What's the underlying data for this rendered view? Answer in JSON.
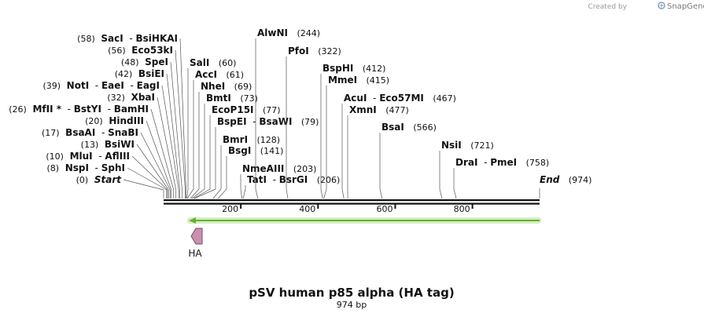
{
  "header": {
    "created_by": "Created by",
    "brand": "SnapGene"
  },
  "map": {
    "title": "pSV human p85 alpha (HA tag)",
    "length_label": "974 bp",
    "length": 974,
    "ticks": [
      200,
      400,
      600,
      800
    ],
    "feature": {
      "name": "HA",
      "color": "#c990b0",
      "direction": "left"
    },
    "sequence_line": {
      "color": "#66b033",
      "glow": "#d6eec2",
      "direction": "left"
    }
  },
  "left_sites": [
    {
      "pos": "(58)",
      "p": 58,
      "names": [
        "SacI",
        "BsiHKAI"
      ]
    },
    {
      "pos": "(56)",
      "p": 56,
      "names": [
        "Eco53kI"
      ]
    },
    {
      "pos": "(48)",
      "p": 48,
      "names": [
        "SpeI"
      ]
    },
    {
      "pos": "(42)",
      "p": 42,
      "names": [
        "BsiEI"
      ]
    },
    {
      "pos": "(39)",
      "p": 39,
      "names": [
        "NotI",
        "EaeI",
        "EagI"
      ]
    },
    {
      "pos": "(32)",
      "p": 32,
      "names": [
        "XbaI"
      ]
    },
    {
      "pos": "(26)",
      "p": 26,
      "names": [
        "MfII *",
        "BstYI",
        "BamHI"
      ]
    },
    {
      "pos": "(20)",
      "p": 20,
      "names": [
        "HindIII"
      ]
    },
    {
      "pos": "(17)",
      "p": 17,
      "names": [
        "BsaAI",
        "SnaBI"
      ]
    },
    {
      "pos": "(13)",
      "p": 13,
      "names": [
        "BsiWI"
      ]
    },
    {
      "pos": "(10)",
      "p": 10,
      "names": [
        "MluI",
        "AflIII"
      ]
    },
    {
      "pos": "(8)",
      "p": 8,
      "names": [
        "NspI",
        "SphI"
      ]
    },
    {
      "pos": "(0)",
      "p": 0,
      "names": [
        "Start"
      ],
      "italic": true
    }
  ],
  "right_sites": [
    {
      "pos": "(60)",
      "p": 60,
      "names": [
        "SalI"
      ]
    },
    {
      "pos": "(61)",
      "p": 61,
      "names": [
        "AccI"
      ]
    },
    {
      "pos": "(69)",
      "p": 69,
      "names": [
        "NheI"
      ]
    },
    {
      "pos": "(73)",
      "p": 73,
      "names": [
        "BmtI"
      ]
    },
    {
      "pos": "(77)",
      "p": 77,
      "names": [
        "EcoP15I"
      ]
    },
    {
      "pos": "(79)",
      "p": 79,
      "names": [
        "BspEI",
        "BsaWI"
      ]
    },
    {
      "pos": "(128)",
      "p": 128,
      "names": [
        "BmrI"
      ]
    },
    {
      "pos": "(141)",
      "p": 141,
      "names": [
        "BsgI"
      ]
    },
    {
      "pos": "(203)",
      "p": 203,
      "names": [
        "NmeAIII"
      ]
    },
    {
      "pos": "(206)",
      "p": 206,
      "names": [
        "TatI",
        "BsrGI"
      ]
    },
    {
      "pos": "(244)",
      "p": 244,
      "names": [
        "AlwNI"
      ]
    },
    {
      "pos": "(322)",
      "p": 322,
      "names": [
        "PfoI"
      ]
    },
    {
      "pos": "(412)",
      "p": 412,
      "names": [
        "BspHI"
      ]
    },
    {
      "pos": "(415)",
      "p": 415,
      "names": [
        "MmeI"
      ]
    },
    {
      "pos": "(467)",
      "p": 467,
      "names": [
        "AcuI",
        "Eco57MI"
      ]
    },
    {
      "pos": "(477)",
      "p": 477,
      "names": [
        "XmnI"
      ]
    },
    {
      "pos": "(566)",
      "p": 566,
      "names": [
        "BsaI"
      ]
    },
    {
      "pos": "(721)",
      "p": 721,
      "names": [
        "NsiI"
      ]
    },
    {
      "pos": "(758)",
      "p": 758,
      "names": [
        "DraI",
        "PmeI"
      ]
    },
    {
      "pos": "(974)",
      "p": 974,
      "names": [
        "End"
      ],
      "italic": true
    }
  ]
}
